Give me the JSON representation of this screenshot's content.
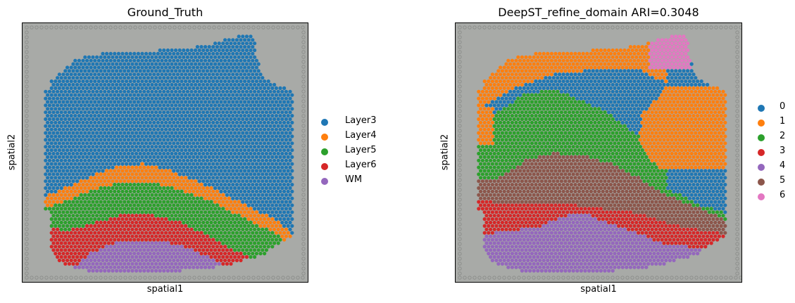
{
  "panels": [
    {
      "title": "Ground_Truth",
      "xlabel": "spatial1",
      "ylabel": "spatial2",
      "legend": [
        {
          "label": "Layer3",
          "color": "#1f77b4"
        },
        {
          "label": "Layer4",
          "color": "#ff7f0e"
        },
        {
          "label": "Layer5",
          "color": "#2ca02c"
        },
        {
          "label": "Layer6",
          "color": "#d62728"
        },
        {
          "label": "WM",
          "color": "#9467bd"
        }
      ]
    },
    {
      "title": "DeepST_refine_domain ARI=0.3048",
      "xlabel": "spatial1",
      "ylabel": "spatial2",
      "legend": [
        {
          "label": "0",
          "color": "#1f77b4"
        },
        {
          "label": "1",
          "color": "#ff7f0e"
        },
        {
          "label": "2",
          "color": "#2ca02c"
        },
        {
          "label": "3",
          "color": "#d62728"
        },
        {
          "label": "4",
          "color": "#9467bd"
        },
        {
          "label": "5",
          "color": "#8c564b"
        },
        {
          "label": "6",
          "color": "#e377c2"
        }
      ]
    }
  ],
  "chart_data": [
    {
      "type": "scatter",
      "title": "Ground_Truth",
      "xlabel": "spatial1",
      "ylabel": "spatial2",
      "series": [
        {
          "name": "Layer3",
          "color": "#1f77b4"
        },
        {
          "name": "Layer4",
          "color": "#ff7f0e"
        },
        {
          "name": "Layer5",
          "color": "#2ca02c"
        },
        {
          "name": "Layer6",
          "color": "#d62728"
        },
        {
          "name": "WM",
          "color": "#9467bd"
        }
      ],
      "background": "tissue image",
      "ticks": "none",
      "legend_position": "right"
    },
    {
      "type": "scatter",
      "title": "DeepST_refine_domain ARI=0.3048",
      "xlabel": "spatial1",
      "ylabel": "spatial2",
      "series": [
        {
          "name": "0",
          "color": "#1f77b4"
        },
        {
          "name": "1",
          "color": "#ff7f0e"
        },
        {
          "name": "2",
          "color": "#2ca02c"
        },
        {
          "name": "3",
          "color": "#d62728"
        },
        {
          "name": "4",
          "color": "#9467bd"
        },
        {
          "name": "5",
          "color": "#8c564b"
        },
        {
          "name": "6",
          "color": "#e377c2"
        }
      ],
      "background": "tissue image",
      "ticks": "none",
      "legend_position": "right"
    }
  ]
}
